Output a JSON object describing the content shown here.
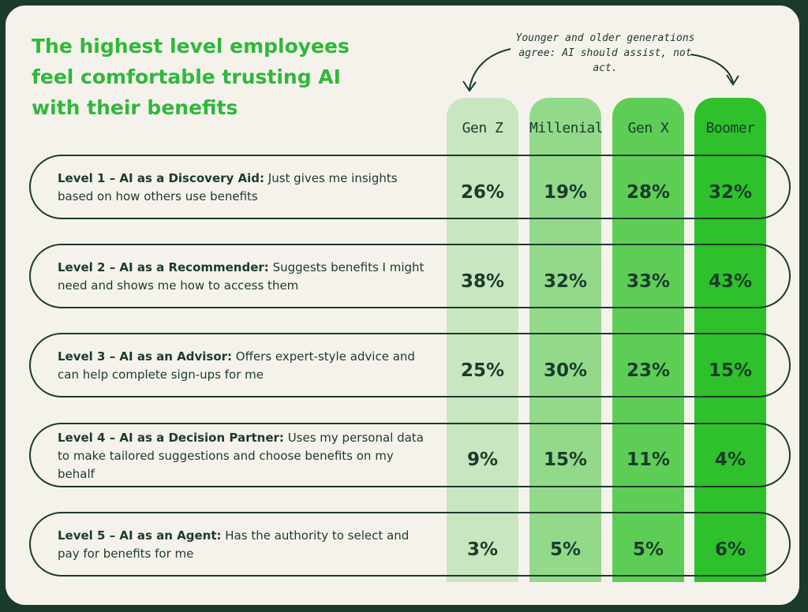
{
  "title": "The highest level employees feel comfortable trusting AI with their benefits",
  "annotation": {
    "line1": "Younger and older generations",
    "line2": "agree: AI should assist, not act."
  },
  "colors": {
    "title": "#2fb83a",
    "text": "#1a3b2c",
    "background": "#f5f2ec",
    "columns": [
      "#c8e6bf",
      "#93d98a",
      "#5ecd55",
      "#2ec12b"
    ]
  },
  "chart_data": {
    "type": "table",
    "title": "The highest level employees feel comfortable trusting AI with their benefits",
    "categories": [
      "Level 1 – AI as a Discovery Aid",
      "Level 2 – AI as a Recommender",
      "Level 3 – AI as an Advisor",
      "Level 4 – AI as a Decision Partner",
      "Level 5 – AI as an Agent"
    ],
    "series": [
      {
        "name": "Gen Z",
        "values": [
          26,
          38,
          25,
          9,
          3
        ]
      },
      {
        "name": "Millenial",
        "values": [
          19,
          32,
          30,
          15,
          5
        ]
      },
      {
        "name": "Gen X",
        "values": [
          28,
          33,
          23,
          11,
          5
        ]
      },
      {
        "name": "Boomer",
        "values": [
          32,
          43,
          15,
          4,
          6
        ]
      }
    ],
    "display_values": [
      [
        "26%",
        "19%",
        "28%",
        "32%"
      ],
      [
        "38%",
        "32%",
        "33%",
        "43%"
      ],
      [
        "25%",
        "30%",
        "23%",
        "15%"
      ],
      [
        "9%",
        "15%",
        "11%",
        "4%"
      ],
      [
        "3%",
        "5%",
        "5%",
        "6%"
      ]
    ]
  },
  "rows": [
    {
      "bold": "Level 1 – AI as a Discovery Aid:",
      "desc": " Just gives me insights based on how others use benefits"
    },
    {
      "bold": "Level 2 – AI as a Recommender:",
      "desc": " Suggests benefits I might need and shows me how to access them"
    },
    {
      "bold": "Level 3 – AI as an Advisor:",
      "desc": " Offers expert-style advice and can help complete sign-ups for me"
    },
    {
      "bold": "Level 4 – AI as a Decision Partner:",
      "desc": " Uses my personal data to make tailored suggestions and choose benefits on my behalf"
    },
    {
      "bold": "Level 5 – AI as an Agent:",
      "desc": " Has the authority to select and pay for benefits for me"
    }
  ]
}
